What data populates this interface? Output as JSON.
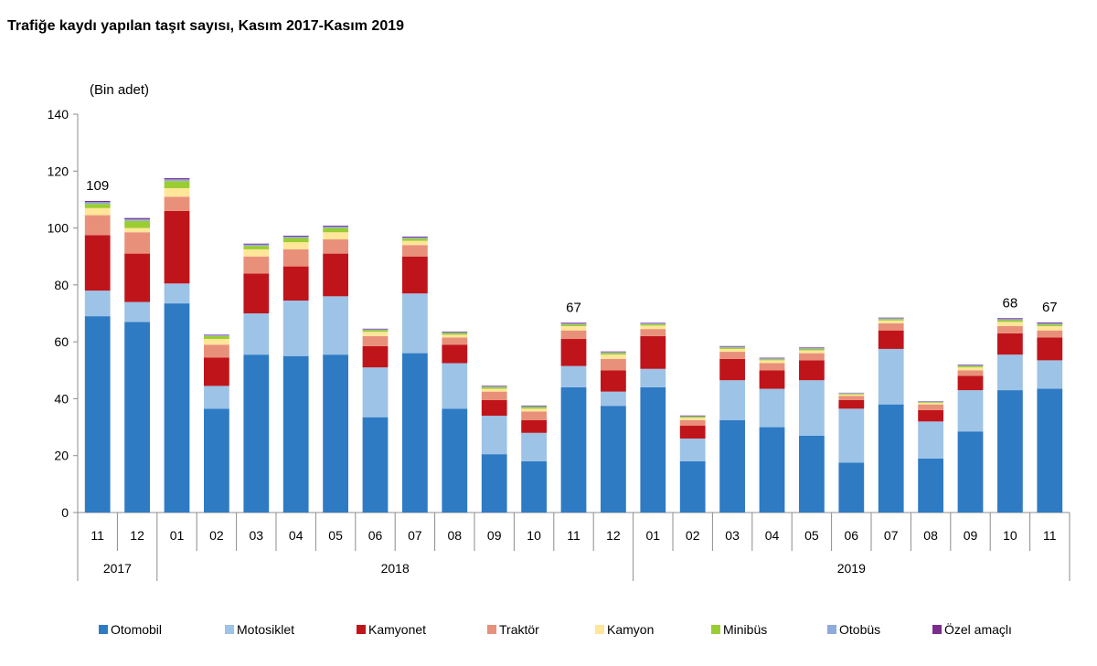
{
  "chart_data": {
    "type": "bar",
    "stacked": true,
    "title": "Trafiğe kaydı yapılan taşıt sayısı, Kasım 2017-Kasım  2019",
    "unit_label": "(Bin adet)",
    "ylim": [
      0,
      140
    ],
    "yticks": [
      "0",
      "20",
      "40",
      "60",
      "80",
      "100",
      "120",
      "140"
    ],
    "categories": [
      "11",
      "12",
      "01",
      "02",
      "03",
      "04",
      "05",
      "06",
      "07",
      "08",
      "09",
      "10",
      "11",
      "12",
      "01",
      "02",
      "03",
      "04",
      "05",
      "06",
      "07",
      "08",
      "09",
      "10",
      "11"
    ],
    "year_groups": [
      {
        "label": "2017",
        "count": 2
      },
      {
        "label": "2018",
        "count": 12
      },
      {
        "label": "2019",
        "count": 11
      }
    ],
    "series": [
      {
        "name": "Otomobil",
        "color": "#2E7BC4",
        "values": [
          69,
          67,
          73.5,
          36.5,
          55.5,
          55,
          55.5,
          33.5,
          56,
          36.5,
          20.5,
          18,
          44,
          37.5,
          44,
          18,
          32.5,
          30,
          27,
          17.5,
          38,
          19,
          28.5,
          43,
          43.5
        ]
      },
      {
        "name": "Motosiklet",
        "color": "#9DC3E6",
        "values": [
          9,
          7,
          7,
          8,
          14.5,
          19.5,
          20.5,
          17.5,
          21,
          16,
          13.5,
          10,
          7.5,
          5,
          6.5,
          8,
          14,
          13.5,
          19.5,
          19,
          19.5,
          13,
          14.5,
          12.5,
          10
        ]
      },
      {
        "name": "Kamyonet",
        "color": "#C0141B",
        "values": [
          19.5,
          17,
          25.5,
          10,
          14,
          12,
          15,
          7.5,
          13,
          6.5,
          5.5,
          4.5,
          9.5,
          7.5,
          11.5,
          4.5,
          7.5,
          6.5,
          7,
          3,
          6.5,
          4,
          5,
          7.5,
          8
        ]
      },
      {
        "name": "Traktör",
        "color": "#E8907A",
        "values": [
          7,
          7.5,
          5,
          4.5,
          6,
          6,
          5,
          3.5,
          4,
          2.5,
          3,
          3,
          3,
          4,
          2.5,
          2,
          2.5,
          2.5,
          2.5,
          1.5,
          2.5,
          2,
          2,
          2.5,
          2.5
        ]
      },
      {
        "name": "Kamyon",
        "color": "#FFE699",
        "values": [
          2.5,
          1.5,
          3,
          2,
          2.5,
          2.5,
          2.5,
          1.5,
          1.5,
          1,
          1,
          1,
          1.5,
          1.5,
          1.2,
          0.8,
          1,
          1,
          1,
          0.5,
          1,
          0.5,
          1,
          1.5,
          1.5
        ]
      },
      {
        "name": "Minibüs",
        "color": "#9ACD32",
        "values": [
          1.5,
          2.5,
          2.5,
          1,
          1.2,
          1.5,
          1.5,
          0.6,
          0.8,
          0.6,
          0.6,
          0.6,
          0.6,
          0.6,
          0.5,
          0.4,
          0.5,
          0.4,
          0.5,
          0.3,
          0.5,
          0.3,
          0.5,
          0.6,
          0.6
        ]
      },
      {
        "name": "Otobüs",
        "color": "#8FAADC",
        "values": [
          0.6,
          0.6,
          0.6,
          0.3,
          0.5,
          0.5,
          0.5,
          0.3,
          0.4,
          0.3,
          0.3,
          0.3,
          0.3,
          0.3,
          0.3,
          0.2,
          0.3,
          0.3,
          0.3,
          0.2,
          0.3,
          0.2,
          0.3,
          0.4,
          0.4
        ]
      },
      {
        "name": "Özel amaçlı",
        "color": "#7B2C8E",
        "values": [
          0.4,
          0.4,
          0.4,
          0.2,
          0.3,
          0.3,
          0.3,
          0.2,
          0.3,
          0.2,
          0.2,
          0.2,
          0.3,
          0.2,
          0.2,
          0.2,
          0.2,
          0.2,
          0.2,
          0.1,
          0.2,
          0.1,
          0.2,
          0.3,
          0.3
        ]
      }
    ],
    "annotations": [
      {
        "index": 0,
        "text": "109"
      },
      {
        "index": 12,
        "text": "67"
      },
      {
        "index": 23,
        "text": "68"
      },
      {
        "index": 24,
        "text": "67"
      }
    ],
    "legend_position": "bottom",
    "grid": false
  }
}
